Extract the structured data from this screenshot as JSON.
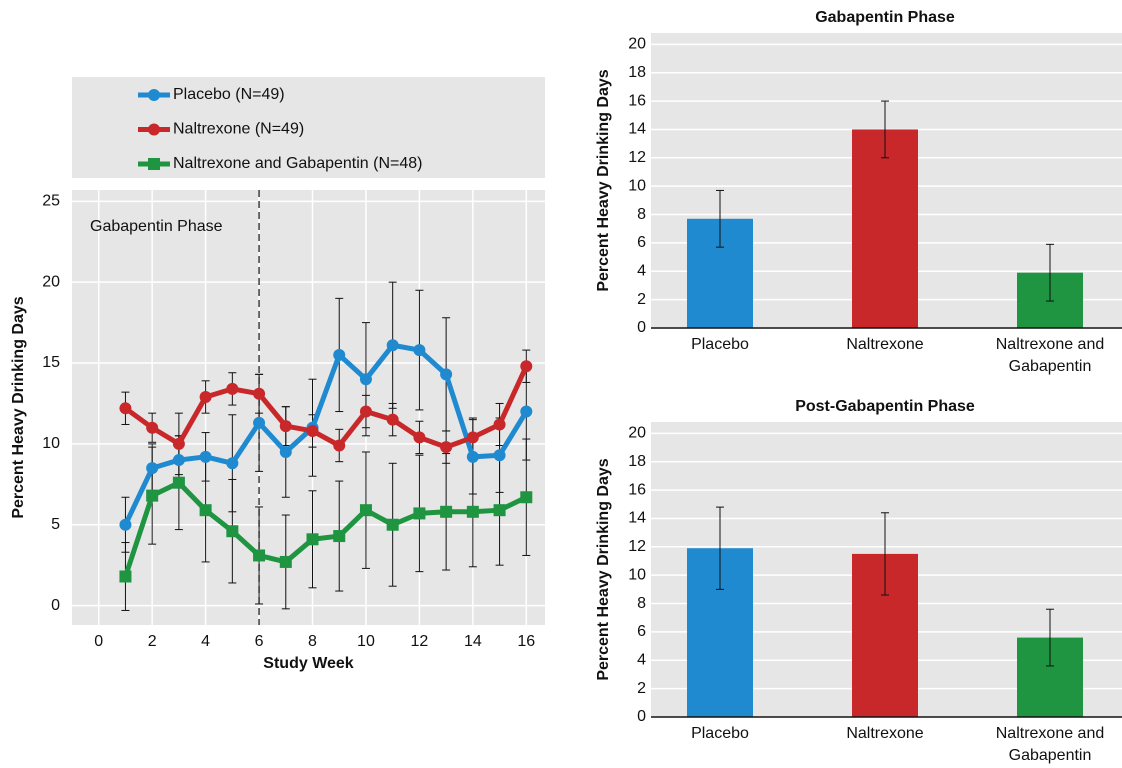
{
  "chart_data": [
    {
      "type": "line",
      "legend_labels": [
        "Placebo (N=49)",
        "Naltrexone (N=49)",
        "Naltrexone and Gabapentin (N=48)"
      ],
      "xlabel": "Study Week",
      "ylabel": "Percent Heavy Drinking Days",
      "annotation": "Gabapentin Phase",
      "vline": 6,
      "x": [
        1,
        2,
        3,
        4,
        5,
        6,
        7,
        8,
        9,
        10,
        11,
        12,
        13,
        14,
        15,
        16
      ],
      "xlim": [
        -1,
        16.7
      ],
      "xticks": [
        0,
        2,
        4,
        6,
        8,
        10,
        12,
        14,
        16
      ],
      "ylim": [
        -1.2,
        25.7
      ],
      "yticks": [
        0,
        5,
        10,
        15,
        20,
        25
      ],
      "grid": true,
      "series": [
        {
          "name": "Placebo (N=49)",
          "color": "#1f8ad0",
          "marker": "circle",
          "values": [
            5.0,
            8.5,
            9.0,
            9.2,
            8.8,
            11.3,
            9.5,
            11.0,
            15.5,
            14.0,
            16.1,
            15.8,
            14.3,
            9.2,
            9.3,
            12.0
          ],
          "errors": [
            1.7,
            1.5,
            1.5,
            1.5,
            3.0,
            3.0,
            2.8,
            3.0,
            3.5,
            3.5,
            3.9,
            3.7,
            3.5,
            2.3,
            2.3,
            3.0
          ]
        },
        {
          "name": "Naltrexone (N=49)",
          "color": "#c8282a",
          "marker": "circle",
          "values": [
            12.2,
            11.0,
            10.0,
            12.9,
            13.4,
            13.1,
            11.1,
            10.8,
            9.9,
            12.0,
            11.5,
            10.4,
            9.8,
            10.4,
            11.2,
            14.8
          ],
          "errors": [
            1.0,
            0.9,
            1.9,
            1.0,
            1.0,
            1.2,
            1.2,
            1.0,
            1.0,
            1.0,
            1.0,
            1.0,
            1.0,
            1.2,
            1.3,
            1.0
          ]
        },
        {
          "name": "Naltrexone and Gabapentin (N=48)",
          "color": "#1f9441",
          "marker": "square",
          "values": [
            1.8,
            6.8,
            7.6,
            5.9,
            4.6,
            3.1,
            2.7,
            4.1,
            4.3,
            5.9,
            5.0,
            5.7,
            5.8,
            5.8,
            5.9,
            6.7
          ],
          "errors": [
            2.1,
            3.0,
            2.9,
            3.2,
            3.2,
            3.0,
            2.9,
            3.0,
            3.4,
            3.6,
            3.8,
            3.6,
            3.6,
            3.4,
            3.4,
            3.6
          ]
        }
      ]
    },
    {
      "type": "bar",
      "title": "Gabapentin Phase",
      "ylabel": "Percent Heavy Drinking Days",
      "categories": [
        "Placebo",
        "Naltrexone",
        "Naltrexone and Gabapentin"
      ],
      "values": [
        7.7,
        14.0,
        3.9
      ],
      "errors": [
        2.0,
        2.0,
        2.0
      ],
      "colors": [
        "#1f8ad0",
        "#c8282a",
        "#1f9441"
      ],
      "ylim": [
        0,
        20.8
      ],
      "yticks": [
        0,
        2,
        4,
        6,
        8,
        10,
        12,
        14,
        16,
        18,
        20
      ],
      "grid": true
    },
    {
      "type": "bar",
      "title": "Post-Gabapentin Phase",
      "ylabel": "Percent Heavy Drinking Days",
      "categories": [
        "Placebo",
        "Naltrexone",
        "Naltrexone and Gabapentin"
      ],
      "values": [
        11.9,
        11.5,
        5.6
      ],
      "errors": [
        2.9,
        2.9,
        2.0
      ],
      "colors": [
        "#1f8ad0",
        "#c8282a",
        "#1f9441"
      ],
      "ylim": [
        0,
        20.8
      ],
      "yticks": [
        0,
        2,
        4,
        6,
        8,
        10,
        12,
        14,
        16,
        18,
        20
      ],
      "grid": true
    }
  ]
}
